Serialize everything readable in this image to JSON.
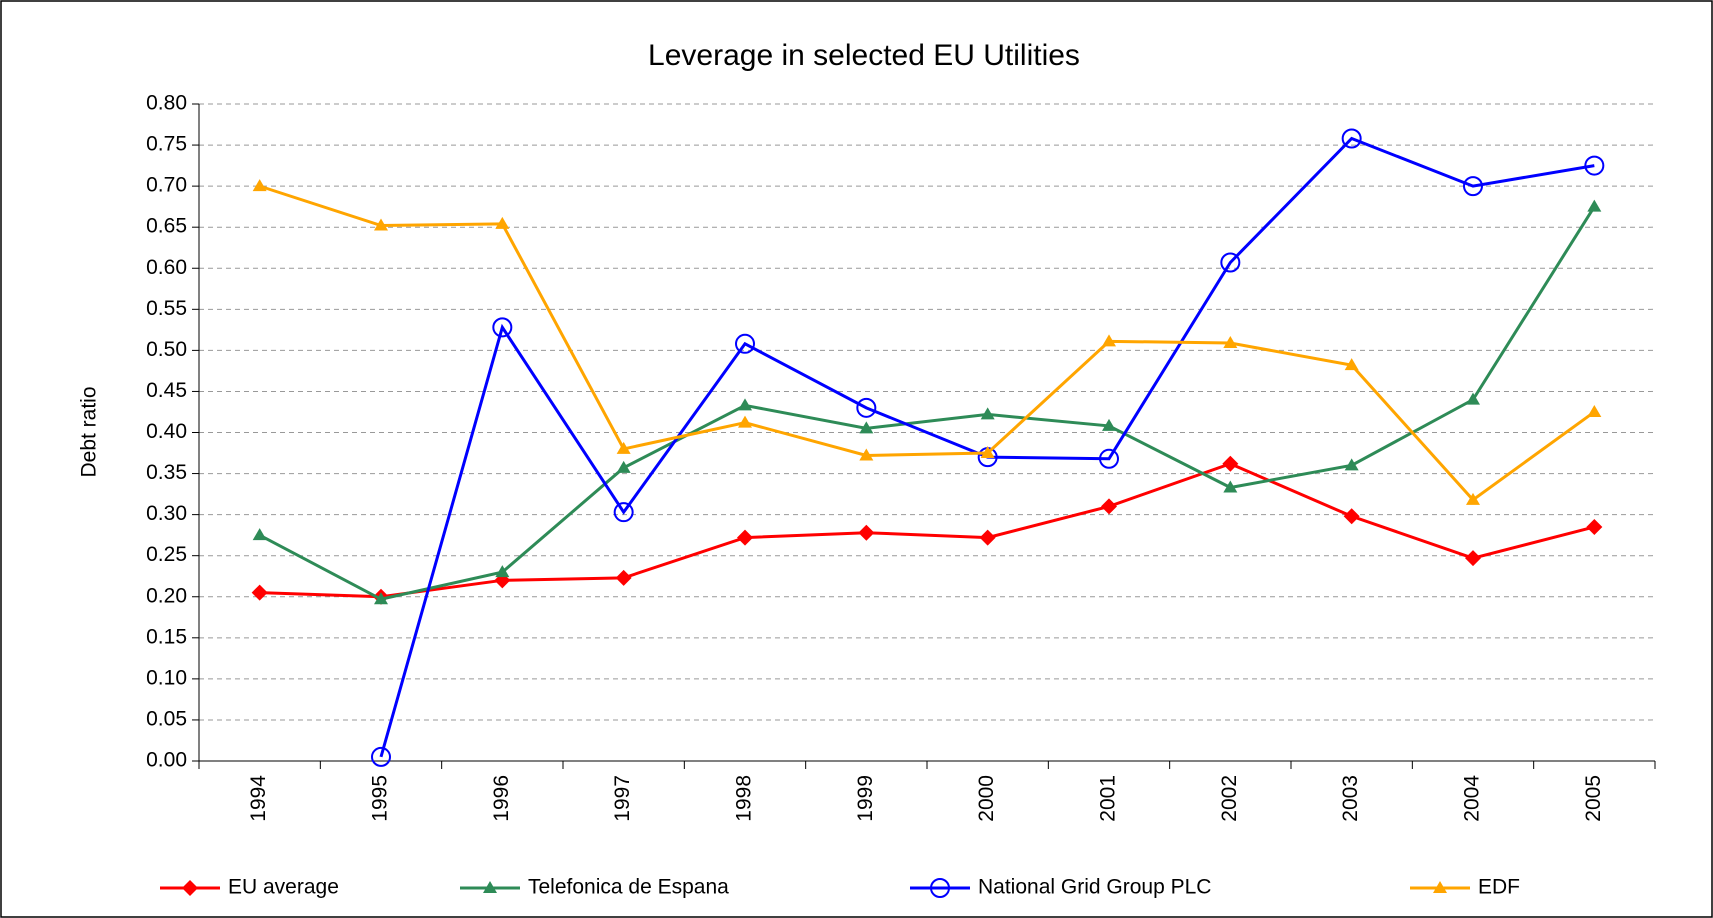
{
  "chart_data": {
    "type": "line",
    "title": "Leverage in selected EU Utilities",
    "y_label": "Debt ratio",
    "categories": [
      "1994",
      "1995",
      "1996",
      "1997",
      "1998",
      "1999",
      "2000",
      "2001",
      "2002",
      "2003",
      "2004",
      "2005"
    ],
    "series": [
      {
        "name": "EU average",
        "color": "#ff0000",
        "marker": "diamond",
        "values": [
          0.205,
          0.2,
          0.22,
          0.223,
          0.272,
          0.278,
          0.272,
          0.31,
          0.362,
          0.298,
          0.247,
          0.285
        ]
      },
      {
        "name": "Telefonica de Espana",
        "color": "#2e8b57",
        "marker": "triangle",
        "values": [
          0.275,
          0.197,
          0.23,
          0.357,
          0.433,
          0.405,
          0.422,
          0.408,
          0.333,
          0.36,
          0.44,
          0.675
        ]
      },
      {
        "name": "National Grid Group PLC",
        "color": "#0000ff",
        "marker": "circle",
        "values": [
          null,
          0.005,
          0.528,
          0.303,
          0.508,
          0.43,
          0.37,
          0.368,
          0.607,
          0.758,
          0.7,
          0.725
        ]
      },
      {
        "name": "EDF",
        "color": "#ffa500",
        "marker": "triangle",
        "values": [
          0.7,
          0.652,
          0.654,
          0.38,
          0.412,
          0.372,
          0.375,
          0.511,
          0.509,
          0.482,
          0.318,
          0.425
        ]
      }
    ],
    "ylim": [
      0,
      0.8
    ],
    "yticks": [
      {
        "value": 0,
        "label": "0.00"
      },
      {
        "value": 0.05,
        "label": "0.05"
      },
      {
        "value": 0.1,
        "label": "0.10"
      },
      {
        "value": 0.15,
        "label": "0.15"
      },
      {
        "value": 0.2,
        "label": "0.20"
      },
      {
        "value": 0.25,
        "label": "0.25"
      },
      {
        "value": 0.3,
        "label": "0.30"
      },
      {
        "value": 0.35,
        "label": "0.35"
      },
      {
        "value": 0.4,
        "label": "0.40"
      },
      {
        "value": 0.45,
        "label": "0.45"
      },
      {
        "value": 0.5,
        "label": "0.50"
      },
      {
        "value": 0.55,
        "label": "0.55"
      },
      {
        "value": 0.6,
        "label": "0.60"
      },
      {
        "value": 0.65,
        "label": "0.65"
      },
      {
        "value": 0.7,
        "label": "0.70"
      },
      {
        "value": 0.75,
        "label": "0.75"
      },
      {
        "value": 0.8,
        "label": "0.80"
      }
    ],
    "grid": true,
    "legend": "bottom"
  }
}
